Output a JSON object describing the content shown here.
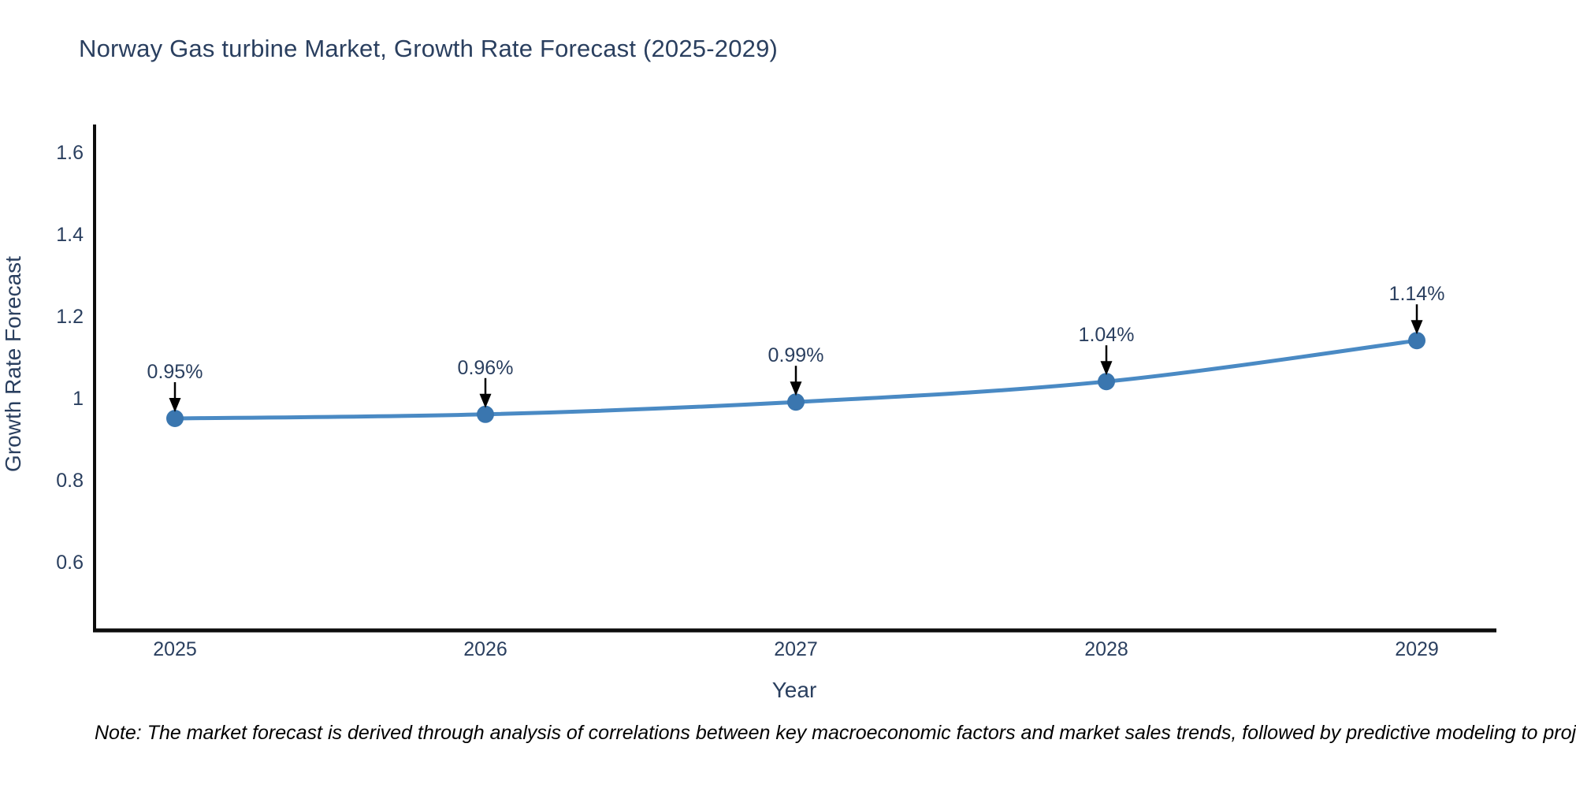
{
  "note": "Note: The market forecast is derived through analysis of correlations between key macroeconomic factors and market sales trends, followed by predictive modeling to project future sales",
  "chart_data": {
    "type": "line",
    "title": "Norway Gas turbine Market, Growth Rate Forecast (2025-2029)",
    "xlabel": "Year",
    "ylabel": "Growth Rate Forecast",
    "categories": [
      "2025",
      "2026",
      "2027",
      "2028",
      "2029"
    ],
    "values": [
      0.95,
      0.96,
      0.99,
      1.04,
      1.14
    ],
    "point_labels": [
      "0.95%",
      "0.96%",
      "0.99%",
      "1.04%",
      "1.14%"
    ],
    "ytick_values": [
      0.6,
      0.8,
      1,
      1.2,
      1.4,
      1.6
    ],
    "ytick_labels": [
      "0.6",
      "0.8",
      "1",
      "1.2",
      "1.4",
      "1.6"
    ],
    "ylim": [
      0.43,
      1.67
    ],
    "grid": false,
    "legend": "none",
    "annotations_have_arrows": true,
    "colors": {
      "line": "#4a8ac4",
      "marker": "#3a76af",
      "axis": "#0d0d0d",
      "text": "#2a3f5f",
      "arrow": "#000000"
    }
  }
}
